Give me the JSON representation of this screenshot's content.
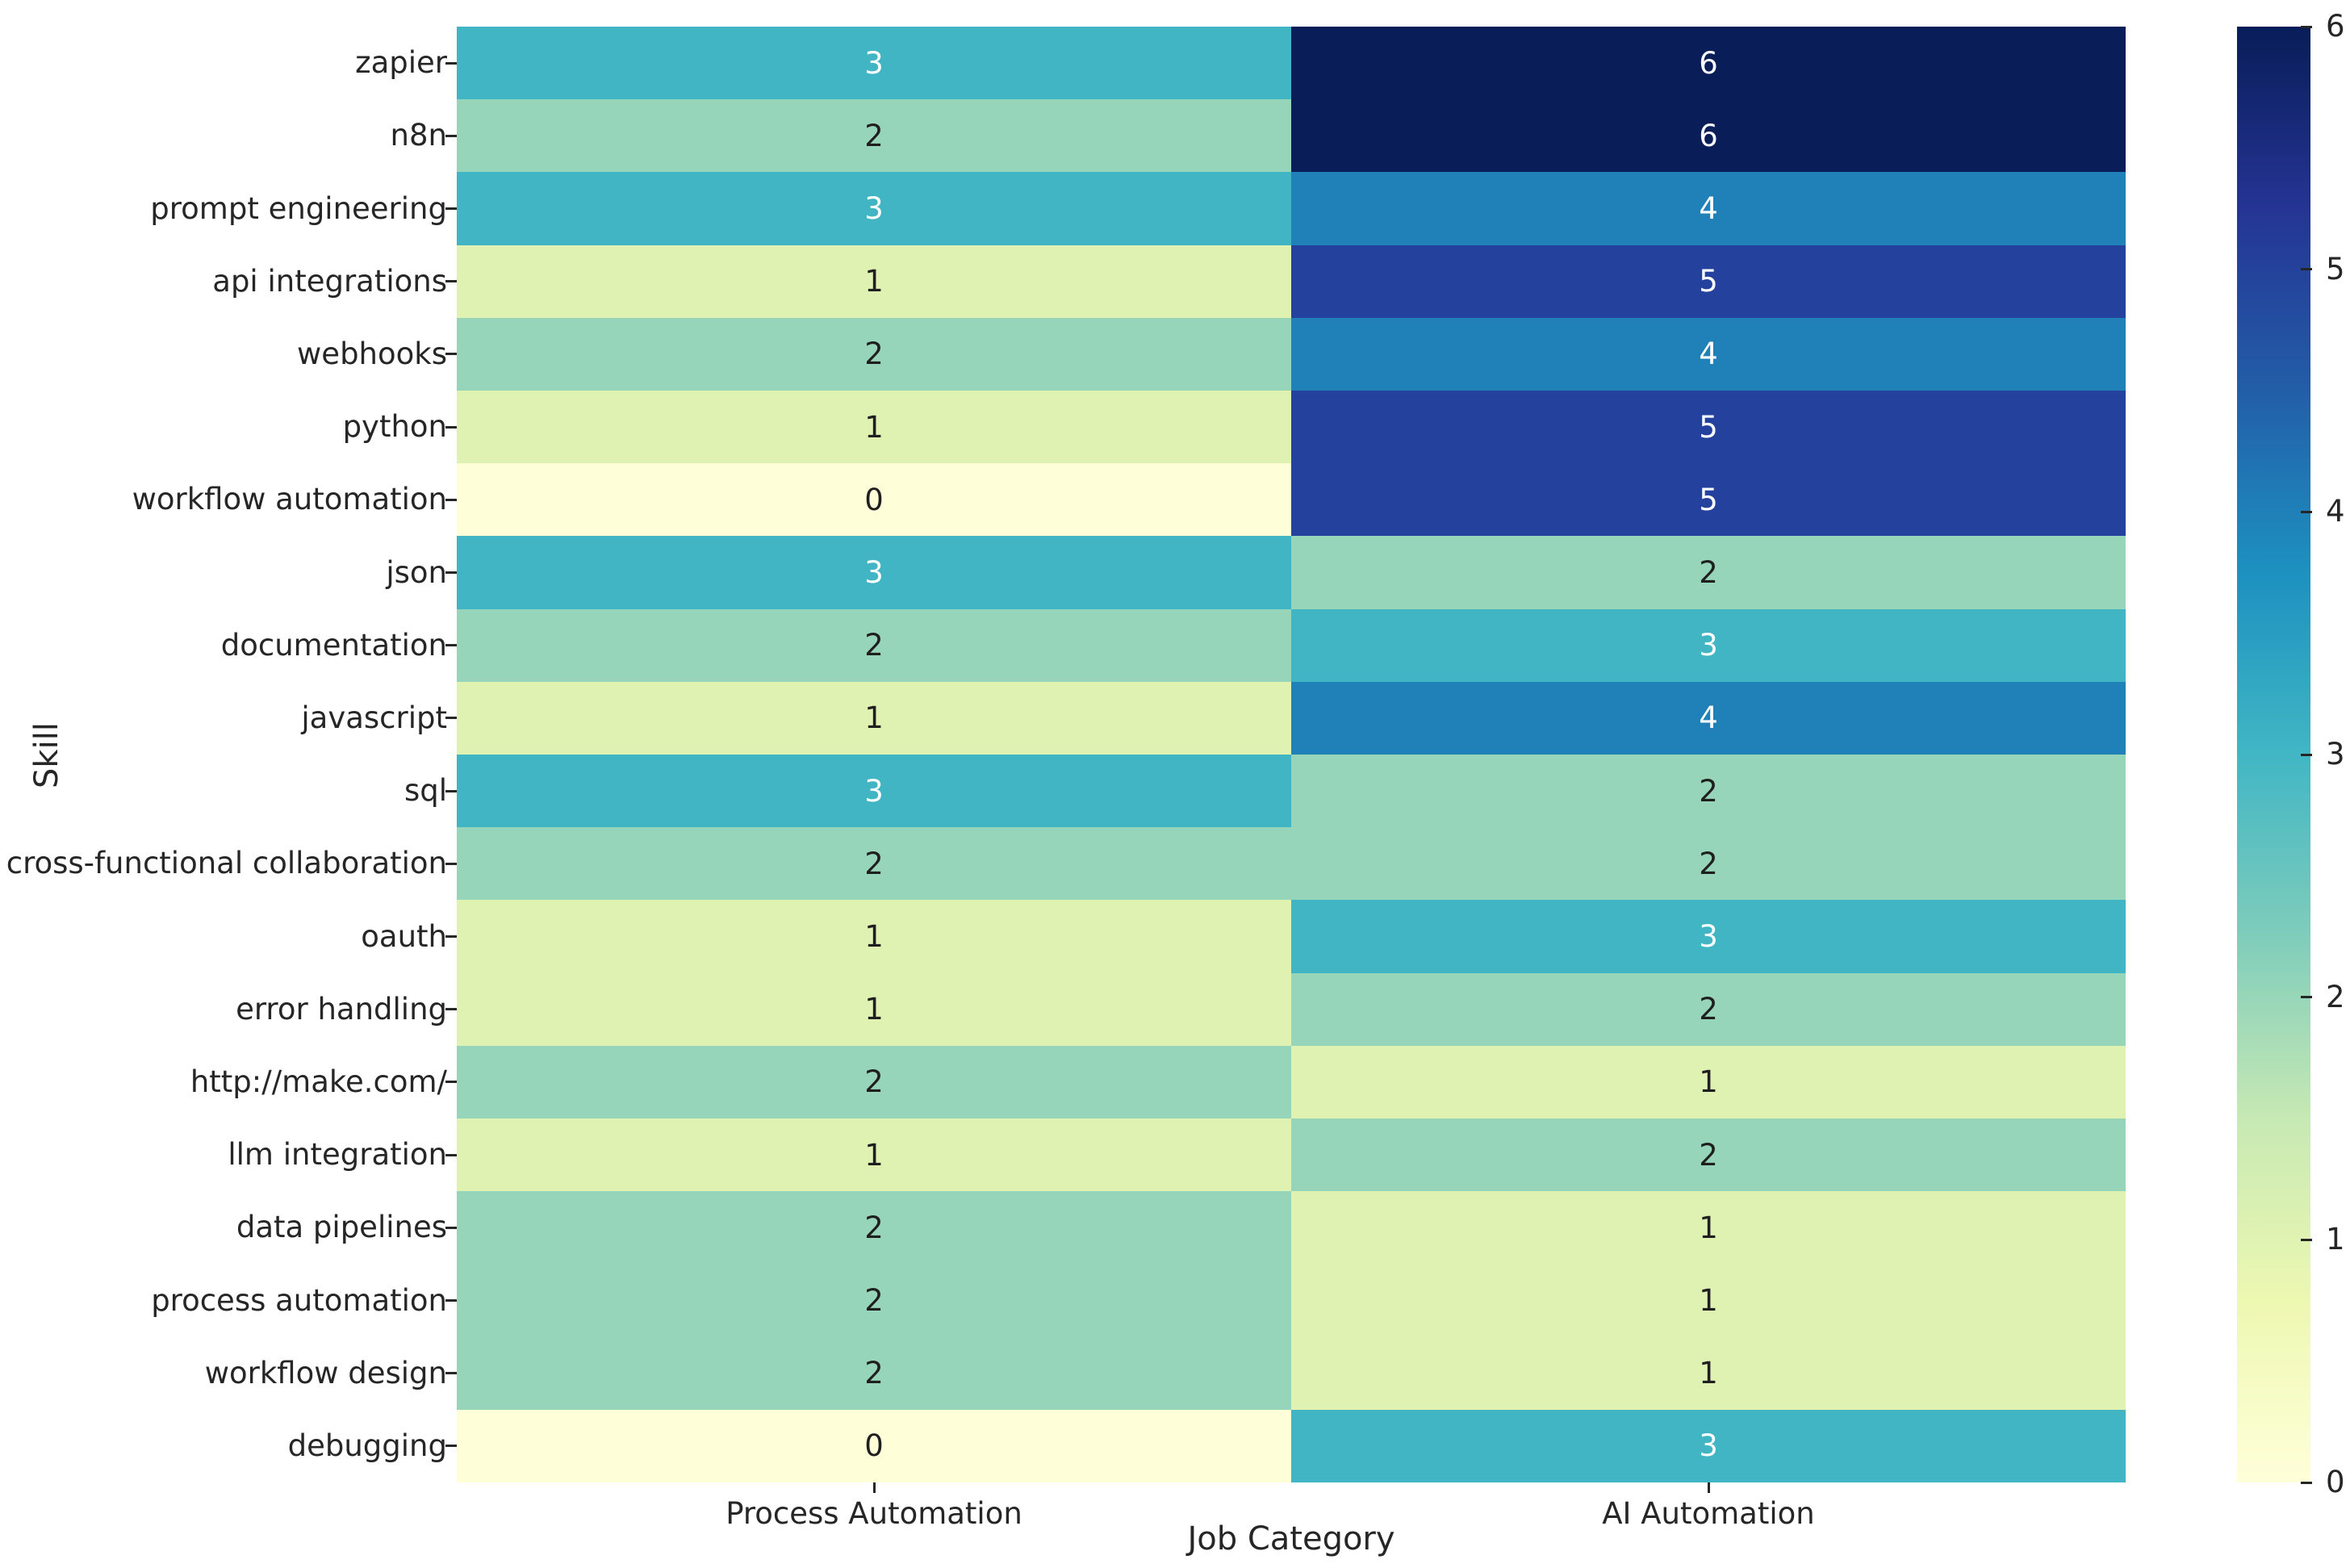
{
  "chart_data": {
    "type": "heatmap",
    "xlabel": "Job Category",
    "ylabel": "Skill",
    "columns": [
      "Process Automation",
      "AI Automation"
    ],
    "rows": [
      "zapier",
      "n8n",
      "prompt engineering",
      "api integrations",
      "webhooks",
      "python",
      "workflow automation",
      "json",
      "documentation",
      "javascript",
      "sql",
      "cross-functional collaboration",
      "oauth",
      "error handling",
      "http://make.com/",
      "llm integration",
      "data pipelines",
      "process automation",
      "workflow design",
      "debugging"
    ],
    "values": [
      [
        3,
        6
      ],
      [
        2,
        6
      ],
      [
        3,
        4
      ],
      [
        1,
        5
      ],
      [
        2,
        4
      ],
      [
        1,
        5
      ],
      [
        0,
        5
      ],
      [
        3,
        2
      ],
      [
        2,
        3
      ],
      [
        1,
        4
      ],
      [
        3,
        2
      ],
      [
        2,
        2
      ],
      [
        1,
        3
      ],
      [
        1,
        2
      ],
      [
        2,
        1
      ],
      [
        1,
        2
      ],
      [
        2,
        1
      ],
      [
        2,
        1
      ],
      [
        2,
        1
      ],
      [
        0,
        3
      ]
    ],
    "vmin": 0,
    "vmax": 6,
    "colorbar_ticks": [
      0,
      1,
      2,
      3,
      4,
      5,
      6
    ],
    "colormap_name": "YlGnBu",
    "value_colors": {
      "0": "#feffd9",
      "1": "#dff2b2",
      "2": "#96d5b9",
      "3": "#41b5c3",
      "4": "#2081b9",
      "5": "#24429d",
      "6": "#091e59"
    },
    "colorbar_gradient_stops": [
      "#ffffd9",
      "#edf8b1",
      "#c7e9b4",
      "#7fcdbb",
      "#41b6c4",
      "#1d91c0",
      "#225ea8",
      "#253494",
      "#081d58"
    ],
    "annotation_color_dark": "#1f1f1f",
    "annotation_color_light": "#ffffff",
    "white_text_threshold": 3
  }
}
